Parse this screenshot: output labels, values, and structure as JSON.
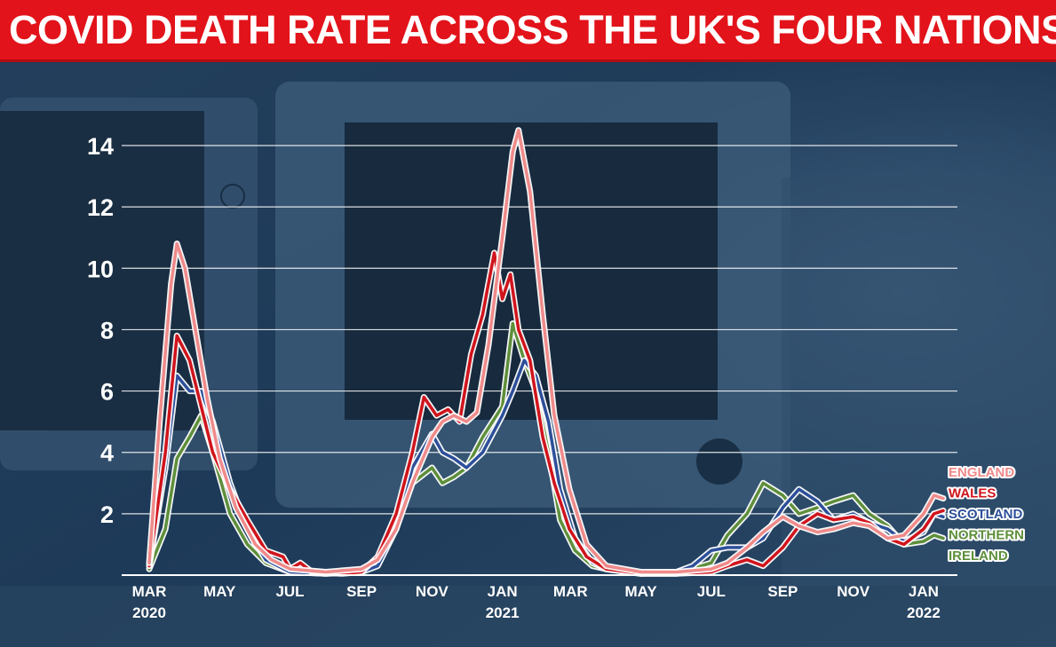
{
  "title": "COVID DEATH RATE ACROSS THE UK'S FOUR NATIONS",
  "colors": {
    "title_bar": "#e2131a",
    "England": "#f08a8a",
    "Wales": "#d0141c",
    "Scotland": "#2d4f9a",
    "Northern Ireland": "#5e8f3a"
  },
  "chart_data": {
    "type": "line",
    "title": "COVID DEATH RATE ACROSS THE UK'S FOUR NATIONS",
    "xlabel": "",
    "ylabel": "",
    "ylim": [
      0,
      14.5
    ],
    "yticks": [
      2,
      4,
      6,
      8,
      10,
      12,
      14
    ],
    "grid": true,
    "legend": "right",
    "xticks": [
      {
        "date": "2020-03-01",
        "label": "MAR",
        "year": "2020"
      },
      {
        "date": "2020-05-01",
        "label": "MAY",
        "year": ""
      },
      {
        "date": "2020-07-01",
        "label": "JUL",
        "year": ""
      },
      {
        "date": "2020-09-01",
        "label": "SEP",
        "year": ""
      },
      {
        "date": "2020-11-01",
        "label": "NOV",
        "year": ""
      },
      {
        "date": "2021-01-01",
        "label": "JAN",
        "year": "2021"
      },
      {
        "date": "2021-03-01",
        "label": "MAR",
        "year": ""
      },
      {
        "date": "2021-05-01",
        "label": "MAY",
        "year": ""
      },
      {
        "date": "2021-07-01",
        "label": "JUL",
        "year": ""
      },
      {
        "date": "2021-09-01",
        "label": "SEP",
        "year": ""
      },
      {
        "date": "2021-11-01",
        "label": "NOV",
        "year": ""
      },
      {
        "date": "2022-01-01",
        "label": "JAN",
        "year": "2022"
      }
    ],
    "series": [
      {
        "name": "ENGLAND",
        "points": [
          [
            "2020-03-01",
            0.4
          ],
          [
            "2020-03-10",
            5.0
          ],
          [
            "2020-03-20",
            9.5
          ],
          [
            "2020-03-25",
            10.8
          ],
          [
            "2020-04-01",
            10.0
          ],
          [
            "2020-04-10",
            8.0
          ],
          [
            "2020-04-20",
            5.8
          ],
          [
            "2020-05-01",
            3.8
          ],
          [
            "2020-05-15",
            2.2
          ],
          [
            "2020-06-01",
            1.0
          ],
          [
            "2020-06-15",
            0.5
          ],
          [
            "2020-07-01",
            0.2
          ],
          [
            "2020-08-01",
            0.1
          ],
          [
            "2020-09-01",
            0.2
          ],
          [
            "2020-09-15",
            0.5
          ],
          [
            "2020-10-01",
            1.5
          ],
          [
            "2020-10-15",
            3.0
          ],
          [
            "2020-11-01",
            4.5
          ],
          [
            "2020-11-10",
            5.0
          ],
          [
            "2020-11-20",
            5.2
          ],
          [
            "2020-12-01",
            5.0
          ],
          [
            "2020-12-10",
            5.3
          ],
          [
            "2020-12-20",
            7.5
          ],
          [
            "2021-01-01",
            11.0
          ],
          [
            "2021-01-10",
            13.8
          ],
          [
            "2021-01-15",
            14.5
          ],
          [
            "2021-01-25",
            12.5
          ],
          [
            "2021-02-05",
            8.5
          ],
          [
            "2021-02-15",
            5.2
          ],
          [
            "2021-02-28",
            2.8
          ],
          [
            "2021-03-15",
            1.0
          ],
          [
            "2021-04-01",
            0.3
          ],
          [
            "2021-05-01",
            0.1
          ],
          [
            "2021-06-01",
            0.1
          ],
          [
            "2021-07-01",
            0.2
          ],
          [
            "2021-07-15",
            0.4
          ],
          [
            "2021-08-01",
            0.9
          ],
          [
            "2021-08-15",
            1.4
          ],
          [
            "2021-09-01",
            1.9
          ],
          [
            "2021-09-15",
            1.6
          ],
          [
            "2021-10-01",
            1.4
          ],
          [
            "2021-10-15",
            1.5
          ],
          [
            "2021-11-01",
            1.7
          ],
          [
            "2021-11-15",
            1.6
          ],
          [
            "2021-12-01",
            1.2
          ],
          [
            "2021-12-15",
            1.3
          ],
          [
            "2022-01-01",
            2.0
          ],
          [
            "2022-01-10",
            2.6
          ],
          [
            "2022-01-18",
            2.5
          ]
        ]
      },
      {
        "name": "WALES",
        "points": [
          [
            "2020-03-01",
            0.3
          ],
          [
            "2020-03-15",
            4.0
          ],
          [
            "2020-03-25",
            7.8
          ],
          [
            "2020-04-05",
            7.0
          ],
          [
            "2020-04-15",
            5.5
          ],
          [
            "2020-04-25",
            4.0
          ],
          [
            "2020-05-10",
            2.8
          ],
          [
            "2020-05-25",
            1.8
          ],
          [
            "2020-06-10",
            0.8
          ],
          [
            "2020-06-25",
            0.6
          ],
          [
            "2020-07-01",
            0.2
          ],
          [
            "2020-07-10",
            0.4
          ],
          [
            "2020-07-20",
            0.1
          ],
          [
            "2020-08-15",
            0.05
          ],
          [
            "2020-09-01",
            0.1
          ],
          [
            "2020-09-15",
            0.6
          ],
          [
            "2020-10-01",
            2.0
          ],
          [
            "2020-10-15",
            4.0
          ],
          [
            "2020-10-25",
            5.8
          ],
          [
            "2020-11-05",
            5.2
          ],
          [
            "2020-11-15",
            5.4
          ],
          [
            "2020-11-25",
            5.0
          ],
          [
            "2020-12-05",
            7.2
          ],
          [
            "2020-12-15",
            8.5
          ],
          [
            "2020-12-25",
            10.5
          ],
          [
            "2021-01-01",
            9.0
          ],
          [
            "2021-01-08",
            9.8
          ],
          [
            "2021-01-15",
            8.0
          ],
          [
            "2021-01-25",
            7.0
          ],
          [
            "2021-02-05",
            4.5
          ],
          [
            "2021-02-15",
            3.0
          ],
          [
            "2021-02-28",
            1.5
          ],
          [
            "2021-03-15",
            0.6
          ],
          [
            "2021-04-01",
            0.2
          ],
          [
            "2021-05-01",
            0.05
          ],
          [
            "2021-06-01",
            0.05
          ],
          [
            "2021-07-01",
            0.1
          ],
          [
            "2021-07-15",
            0.3
          ],
          [
            "2021-08-01",
            0.5
          ],
          [
            "2021-08-15",
            0.3
          ],
          [
            "2021-09-01",
            0.9
          ],
          [
            "2021-09-15",
            1.6
          ],
          [
            "2021-10-01",
            2.0
          ],
          [
            "2021-10-15",
            1.8
          ],
          [
            "2021-11-01",
            1.9
          ],
          [
            "2021-11-15",
            1.7
          ],
          [
            "2021-12-01",
            1.2
          ],
          [
            "2021-12-15",
            1.0
          ],
          [
            "2022-01-01",
            1.5
          ],
          [
            "2022-01-10",
            2.0
          ],
          [
            "2022-01-18",
            2.1
          ]
        ]
      },
      {
        "name": "SCOTLAND",
        "points": [
          [
            "2020-03-01",
            0.3
          ],
          [
            "2020-03-15",
            3.5
          ],
          [
            "2020-03-25",
            6.5
          ],
          [
            "2020-04-05",
            6.0
          ],
          [
            "2020-04-15",
            6.0
          ],
          [
            "2020-04-25",
            5.0
          ],
          [
            "2020-05-10",
            3.0
          ],
          [
            "2020-05-25",
            1.5
          ],
          [
            "2020-06-10",
            0.5
          ],
          [
            "2020-07-01",
            0.1
          ],
          [
            "2020-08-01",
            0.05
          ],
          [
            "2020-09-01",
            0.1
          ],
          [
            "2020-09-15",
            0.3
          ],
          [
            "2020-10-01",
            1.5
          ],
          [
            "2020-10-15",
            3.5
          ],
          [
            "2020-11-01",
            4.6
          ],
          [
            "2020-11-10",
            4.0
          ],
          [
            "2020-11-20",
            3.8
          ],
          [
            "2020-12-01",
            3.5
          ],
          [
            "2020-12-15",
            4.0
          ],
          [
            "2021-01-01",
            5.2
          ],
          [
            "2021-01-10",
            6.0
          ],
          [
            "2021-01-20",
            7.0
          ],
          [
            "2021-01-30",
            6.5
          ],
          [
            "2021-02-10",
            5.0
          ],
          [
            "2021-02-20",
            2.8
          ],
          [
            "2021-03-05",
            1.2
          ],
          [
            "2021-03-20",
            0.4
          ],
          [
            "2021-04-01",
            0.2
          ],
          [
            "2021-05-01",
            0.05
          ],
          [
            "2021-06-01",
            0.1
          ],
          [
            "2021-06-15",
            0.3
          ],
          [
            "2021-07-01",
            0.8
          ],
          [
            "2021-07-15",
            0.9
          ],
          [
            "2021-08-01",
            0.9
          ],
          [
            "2021-08-15",
            1.2
          ],
          [
            "2021-09-01",
            2.2
          ],
          [
            "2021-09-15",
            2.8
          ],
          [
            "2021-10-01",
            2.4
          ],
          [
            "2021-10-15",
            1.8
          ],
          [
            "2021-11-01",
            2.0
          ],
          [
            "2021-11-15",
            1.7
          ],
          [
            "2021-12-01",
            1.5
          ],
          [
            "2021-12-15",
            1.1
          ],
          [
            "2022-01-01",
            1.4
          ],
          [
            "2022-01-10",
            2.0
          ],
          [
            "2022-01-18",
            1.9
          ]
        ]
      },
      {
        "name": "NORTHERN IRELAND",
        "points": [
          [
            "2020-03-01",
            0.2
          ],
          [
            "2020-03-15",
            1.5
          ],
          [
            "2020-03-25",
            3.8
          ],
          [
            "2020-04-05",
            4.5
          ],
          [
            "2020-04-15",
            5.2
          ],
          [
            "2020-04-25",
            4.0
          ],
          [
            "2020-05-10",
            2.0
          ],
          [
            "2020-05-25",
            1.0
          ],
          [
            "2020-06-10",
            0.4
          ],
          [
            "2020-07-01",
            0.1
          ],
          [
            "2020-08-01",
            0.05
          ],
          [
            "2020-09-01",
            0.1
          ],
          [
            "2020-09-15",
            0.5
          ],
          [
            "2020-10-01",
            1.8
          ],
          [
            "2020-10-15",
            3.0
          ],
          [
            "2020-11-01",
            3.5
          ],
          [
            "2020-11-10",
            3.0
          ],
          [
            "2020-11-20",
            3.2
          ],
          [
            "2020-12-01",
            3.5
          ],
          [
            "2020-12-15",
            4.5
          ],
          [
            "2021-01-01",
            5.5
          ],
          [
            "2021-01-10",
            8.2
          ],
          [
            "2021-01-20",
            7.0
          ],
          [
            "2021-01-30",
            6.0
          ],
          [
            "2021-02-10",
            4.0
          ],
          [
            "2021-02-20",
            1.8
          ],
          [
            "2021-03-05",
            0.8
          ],
          [
            "2021-03-20",
            0.3
          ],
          [
            "2021-04-01",
            0.2
          ],
          [
            "2021-05-01",
            0.05
          ],
          [
            "2021-06-01",
            0.05
          ],
          [
            "2021-07-01",
            0.4
          ],
          [
            "2021-07-15",
            1.3
          ],
          [
            "2021-08-01",
            2.0
          ],
          [
            "2021-08-15",
            3.0
          ],
          [
            "2021-09-01",
            2.6
          ],
          [
            "2021-09-15",
            2.0
          ],
          [
            "2021-10-01",
            2.2
          ],
          [
            "2021-10-15",
            2.4
          ],
          [
            "2021-11-01",
            2.6
          ],
          [
            "2021-11-15",
            2.0
          ],
          [
            "2021-12-01",
            1.6
          ],
          [
            "2021-12-15",
            1.0
          ],
          [
            "2022-01-01",
            1.1
          ],
          [
            "2022-01-10",
            1.3
          ],
          [
            "2022-01-18",
            1.2
          ]
        ]
      }
    ]
  }
}
